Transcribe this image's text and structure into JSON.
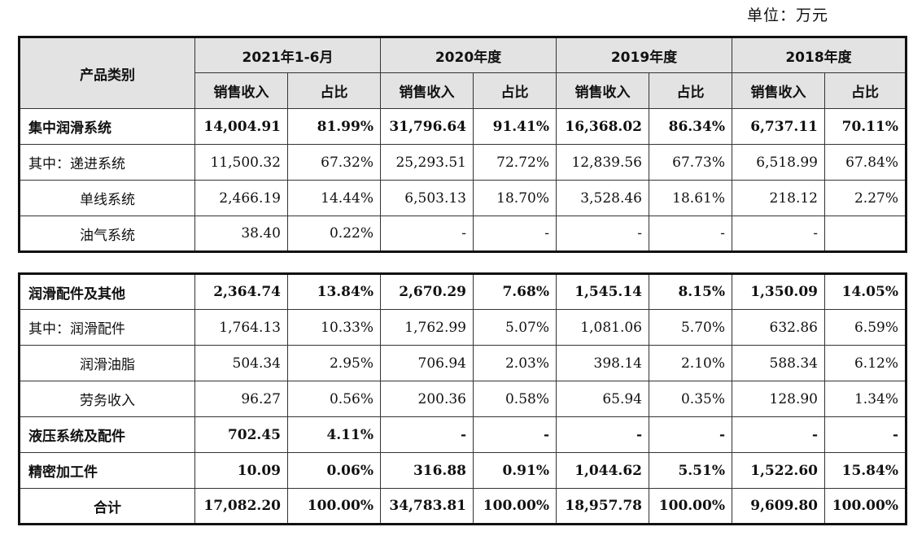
{
  "unit_label": "单位：万元",
  "header": {
    "category": "产品类别",
    "periods": [
      "2021年1-6月",
      "2020年度",
      "2019年度",
      "2018年度"
    ],
    "sub_revenue": "销售收入",
    "sub_ratio": "占比"
  },
  "table1": [
    {
      "label": "集中润滑系统",
      "bold": true,
      "indent": 0,
      "values": [
        "14,004.91",
        "81.99%",
        "31,796.64",
        "91.41%",
        "16,368.02",
        "86.34%",
        "6,737.11",
        "70.11%"
      ]
    },
    {
      "label": "其中：递进系统",
      "bold": false,
      "indent": 1,
      "values": [
        "11,500.32",
        "67.32%",
        "25,293.51",
        "72.72%",
        "12,839.56",
        "67.73%",
        "6,518.99",
        "67.84%"
      ]
    },
    {
      "label": "单线系统",
      "bold": false,
      "indent": 2,
      "values": [
        "2,466.19",
        "14.44%",
        "6,503.13",
        "18.70%",
        "3,528.46",
        "18.61%",
        "218.12",
        "2.27%"
      ]
    },
    {
      "label": "油气系统",
      "bold": false,
      "indent": 2,
      "values": [
        "38.40",
        "0.22%",
        "-",
        "-",
        "-",
        "-",
        "-",
        ""
      ]
    }
  ],
  "table2": [
    {
      "label": "润滑配件及其他",
      "bold": true,
      "indent": 0,
      "values": [
        "2,364.74",
        "13.84%",
        "2,670.29",
        "7.68%",
        "1,545.14",
        "8.15%",
        "1,350.09",
        "14.05%"
      ]
    },
    {
      "label": "其中：润滑配件",
      "bold": false,
      "indent": 1,
      "values": [
        "1,764.13",
        "10.33%",
        "1,762.99",
        "5.07%",
        "1,081.06",
        "5.70%",
        "632.86",
        "6.59%"
      ]
    },
    {
      "label": "润滑油脂",
      "bold": false,
      "indent": 2,
      "values": [
        "504.34",
        "2.95%",
        "706.94",
        "2.03%",
        "398.14",
        "2.10%",
        "588.34",
        "6.12%"
      ]
    },
    {
      "label": "劳务收入",
      "bold": false,
      "indent": 2,
      "values": [
        "96.27",
        "0.56%",
        "200.36",
        "0.58%",
        "65.94",
        "0.35%",
        "128.90",
        "1.34%"
      ]
    },
    {
      "label": "液压系统及配件",
      "bold": true,
      "indent": 0,
      "values": [
        "702.45",
        "4.11%",
        "-",
        "-",
        "-",
        "-",
        "-",
        "-"
      ]
    },
    {
      "label": "精密加工件",
      "bold": true,
      "indent": 0,
      "values": [
        "10.09",
        "0.06%",
        "316.88",
        "0.91%",
        "1,044.62",
        "5.51%",
        "1,522.60",
        "15.84%"
      ]
    },
    {
      "label": "合计",
      "bold": true,
      "indent": -1,
      "values": [
        "17,082.20",
        "100.00%",
        "34,783.81",
        "100.00%",
        "18,957.78",
        "100.00%",
        "9,609.80",
        "100.00%"
      ]
    }
  ]
}
